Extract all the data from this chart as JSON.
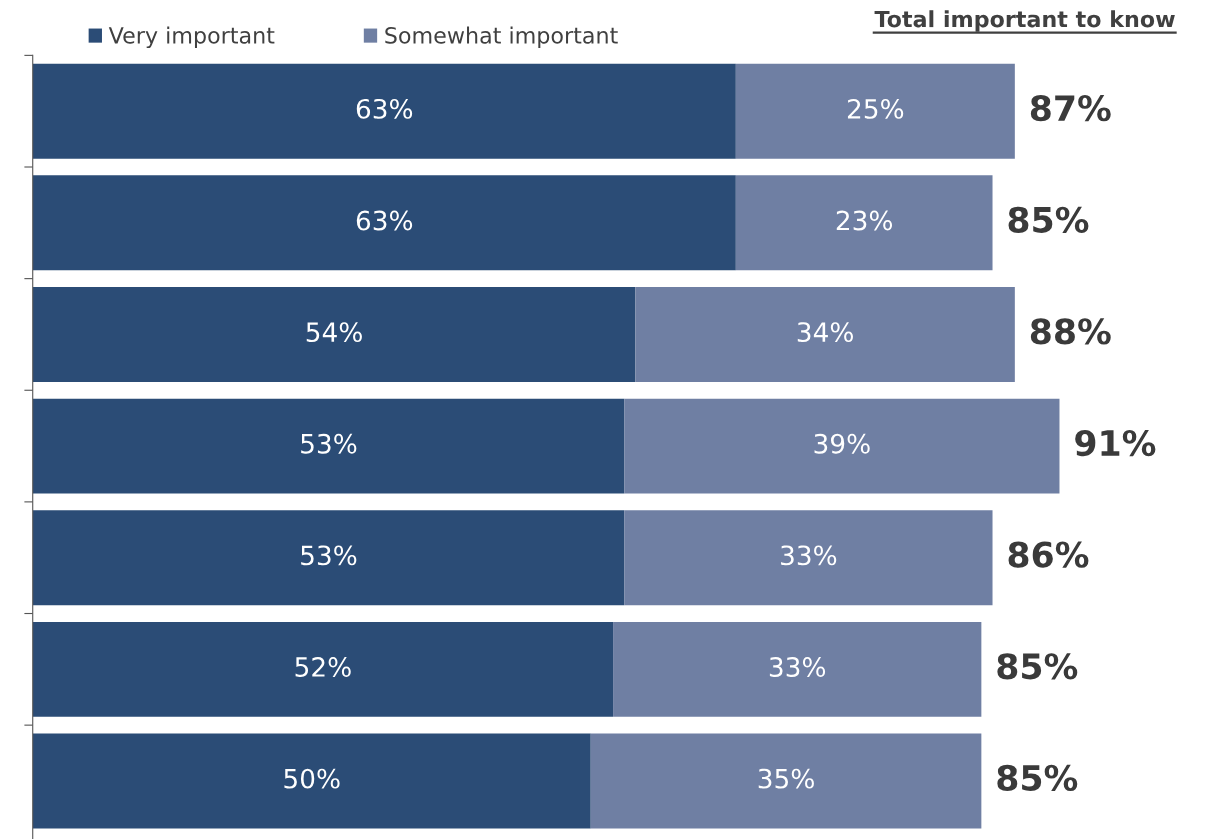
{
  "chart_data": {
    "type": "bar",
    "orientation": "horizontal",
    "stacked": true,
    "categories": [
      null,
      null,
      null,
      null,
      null,
      null,
      null
    ],
    "series": [
      {
        "name": "Very important",
        "color": "#2b4c76",
        "values": [
          63,
          63,
          54,
          53,
          53,
          52,
          50
        ],
        "value_labels": [
          "63%",
          "63%",
          "54%",
          "53%",
          "53%",
          "52%",
          "50%"
        ]
      },
      {
        "name": "Somewhat important",
        "color": "#6f7fa3",
        "values": [
          25,
          23,
          34,
          39,
          33,
          33,
          35
        ],
        "value_labels": [
          "25%",
          "23%",
          "34%",
          "39%",
          "33%",
          "33%",
          "35%"
        ]
      }
    ],
    "totals": [
      "87%",
      "85%",
      "88%",
      "91%",
      "86%",
      "85%",
      "85%"
    ],
    "annotations": [
      "Total important to know"
    ],
    "legend": "top left"
  }
}
